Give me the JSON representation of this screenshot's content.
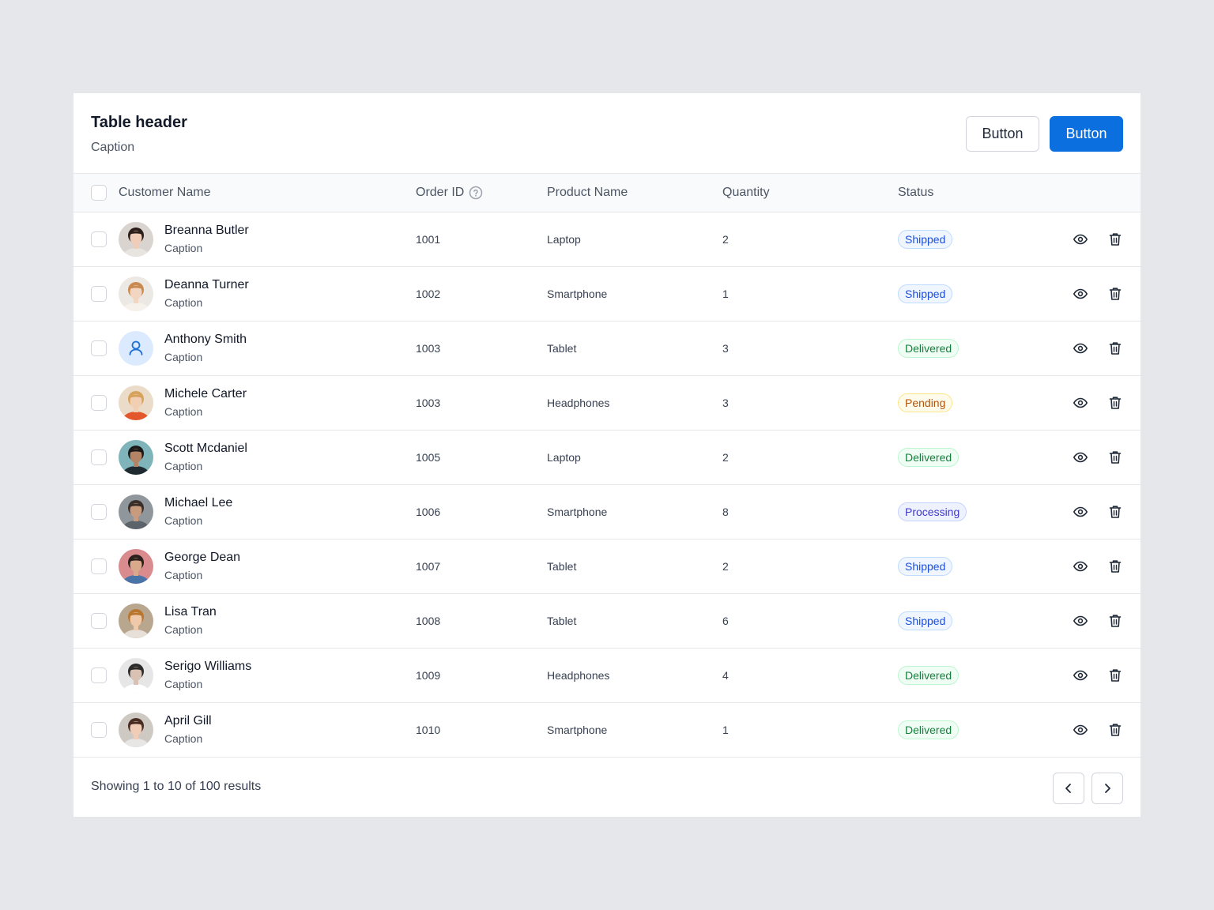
{
  "header": {
    "title": "Table header",
    "caption": "Caption",
    "secondary_button": "Button",
    "primary_button": "Button"
  },
  "columns": {
    "customer": "Customer Name",
    "order_id": "Order ID",
    "product": "Product Name",
    "quantity": "Quantity",
    "status": "Status"
  },
  "rows": [
    {
      "name": "Breanna Butler",
      "caption": "Caption",
      "order_id": "1001",
      "product": "Laptop",
      "quantity": "2",
      "status": "Shipped",
      "avatar": "photo-woman-dark-hair"
    },
    {
      "name": "Deanna Turner",
      "caption": "Caption",
      "order_id": "1002",
      "product": "Smartphone",
      "quantity": "1",
      "status": "Shipped",
      "avatar": "photo-woman-light"
    },
    {
      "name": "Anthony Smith",
      "caption": "Caption",
      "order_id": "1003",
      "product": "Tablet",
      "quantity": "3",
      "status": "Delivered",
      "avatar": "user-icon"
    },
    {
      "name": "Michele Carter",
      "caption": "Caption",
      "order_id": "1003",
      "product": "Headphones",
      "quantity": "3",
      "status": "Pending",
      "avatar": "photo-woman-blonde"
    },
    {
      "name": "Scott Mcdaniel",
      "caption": "Caption",
      "order_id": "1005",
      "product": "Laptop",
      "quantity": "2",
      "status": "Delivered",
      "avatar": "photo-man-cap"
    },
    {
      "name": "Michael Lee",
      "caption": "Caption",
      "order_id": "1006",
      "product": "Smartphone",
      "quantity": "8",
      "status": "Processing",
      "avatar": "photo-man-grey"
    },
    {
      "name": "George Dean",
      "caption": "Caption",
      "order_id": "1007",
      "product": "Tablet",
      "quantity": "2",
      "status": "Shipped",
      "avatar": "photo-man-pink-bg"
    },
    {
      "name": "Lisa Tran",
      "caption": "Caption",
      "order_id": "1008",
      "product": "Tablet",
      "quantity": "6",
      "status": "Shipped",
      "avatar": "photo-woman-curly"
    },
    {
      "name": "Serigo Williams",
      "caption": "Caption",
      "order_id": "1009",
      "product": "Headphones",
      "quantity": "4",
      "status": "Delivered",
      "avatar": "photo-man-glasses"
    },
    {
      "name": "April Gill",
      "caption": "Caption",
      "order_id": "1010",
      "product": "Smartphone",
      "quantity": "1",
      "status": "Delivered",
      "avatar": "photo-woman-short-hair"
    }
  ],
  "status_styles": {
    "Shipped": {
      "bg": "#eff6ff",
      "border": "#bfdbfe",
      "color": "#1d4ed8"
    },
    "Delivered": {
      "bg": "#f0fdf4",
      "border": "#bbf7d0",
      "color": "#15803d"
    },
    "Pending": {
      "bg": "#fffbeb",
      "border": "#fde68a",
      "color": "#b45309"
    },
    "Processing": {
      "bg": "#eef2ff",
      "border": "#c7d2fe",
      "color": "#4338ca"
    }
  },
  "footer": {
    "results_text": "Showing 1 to 10 of 100 results"
  },
  "colors": {
    "primary": "#0b6fe0",
    "background": "#e6e7eb"
  }
}
